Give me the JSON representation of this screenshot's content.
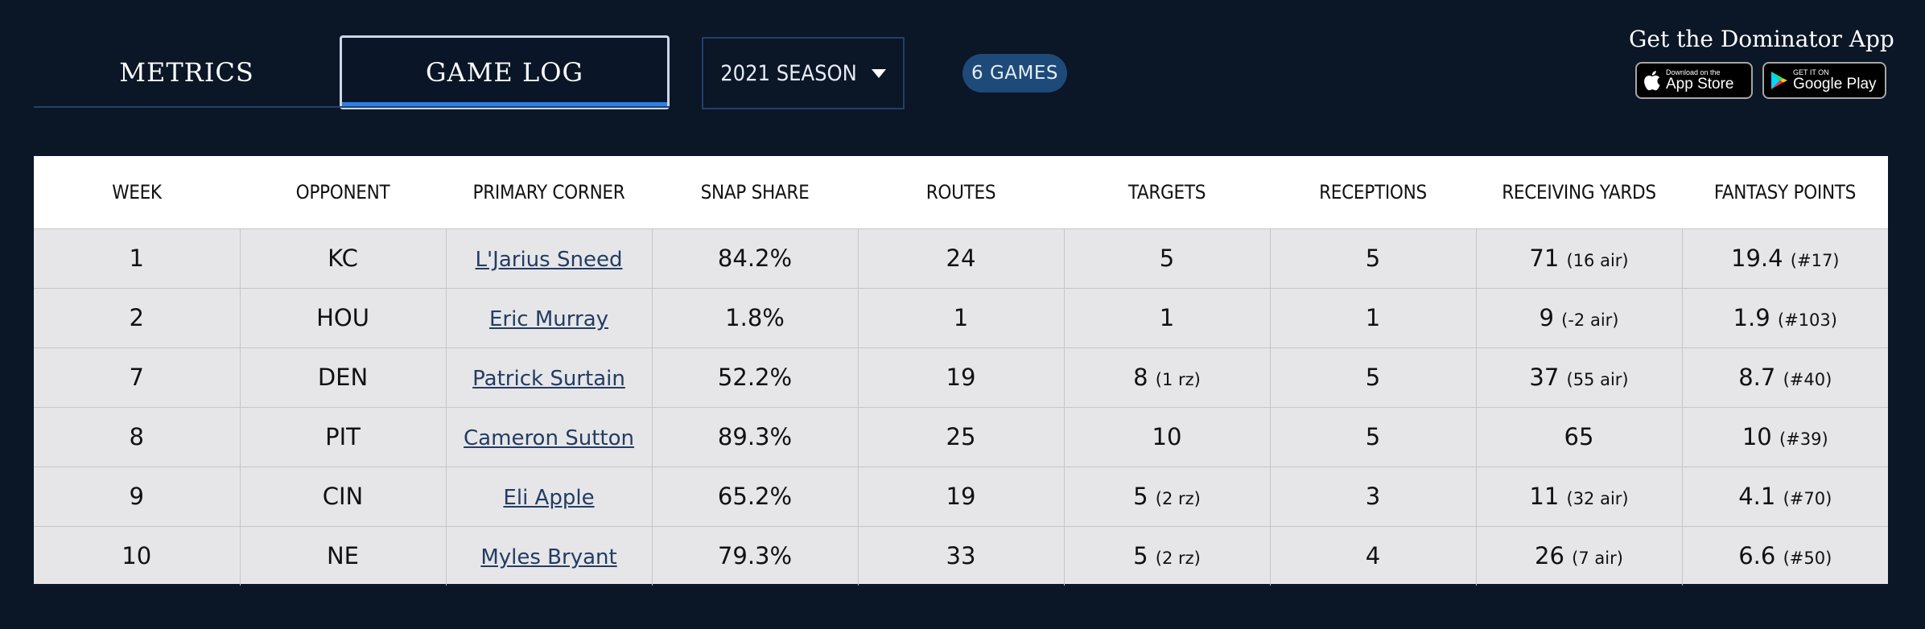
{
  "tabs": {
    "metrics": "METRICS",
    "game_log": "GAME LOG"
  },
  "season": {
    "selected": "2021 SEASON"
  },
  "games_badge": "6 GAMES",
  "app_promo": {
    "title": "Get the Dominator App",
    "apple_small": "Download on the",
    "apple_big": "App Store",
    "google_small": "GET IT ON",
    "google_big": "Google Play"
  },
  "table": {
    "headers": [
      "WEEK",
      "OPPONENT",
      "PRIMARY CORNER",
      "SNAP SHARE",
      "ROUTES",
      "TARGETS",
      "RECEPTIONS",
      "RECEIVING YARDS",
      "FANTASY POINTS"
    ],
    "rows": [
      {
        "week": "1",
        "opp": "KC",
        "corner": "L'Jarius Sneed",
        "snap": "84.2%",
        "routes": "24",
        "targets": "5",
        "targets_sub": "",
        "rec": "5",
        "yards": "71",
        "yards_sub": "(16 air)",
        "fp": "19.4",
        "fp_sub": "(#17)"
      },
      {
        "week": "2",
        "opp": "HOU",
        "corner": "Eric Murray",
        "snap": "1.8%",
        "routes": "1",
        "targets": "1",
        "targets_sub": "",
        "rec": "1",
        "yards": "9",
        "yards_sub": "(-2 air)",
        "fp": "1.9",
        "fp_sub": "(#103)"
      },
      {
        "week": "7",
        "opp": "DEN",
        "corner": "Patrick Surtain",
        "snap": "52.2%",
        "routes": "19",
        "targets": "8",
        "targets_sub": "(1 rz)",
        "rec": "5",
        "yards": "37",
        "yards_sub": "(55 air)",
        "fp": "8.7",
        "fp_sub": "(#40)"
      },
      {
        "week": "8",
        "opp": "PIT",
        "corner": "Cameron Sutton",
        "snap": "89.3%",
        "routes": "25",
        "targets": "10",
        "targets_sub": "",
        "rec": "5",
        "yards": "65",
        "yards_sub": "",
        "fp": "10",
        "fp_sub": "(#39)"
      },
      {
        "week": "9",
        "opp": "CIN",
        "corner": "Eli Apple",
        "snap": "65.2%",
        "routes": "19",
        "targets": "5",
        "targets_sub": "(2 rz)",
        "rec": "3",
        "yards": "11",
        "yards_sub": "(32 air)",
        "fp": "4.1",
        "fp_sub": "(#70)"
      },
      {
        "week": "10",
        "opp": "NE",
        "corner": "Myles Bryant",
        "snap": "79.3%",
        "routes": "33",
        "targets": "5",
        "targets_sub": "(2 rz)",
        "rec": "4",
        "yards": "26",
        "yards_sub": "(7 air)",
        "fp": "6.6",
        "fp_sub": "(#50)"
      }
    ]
  }
}
